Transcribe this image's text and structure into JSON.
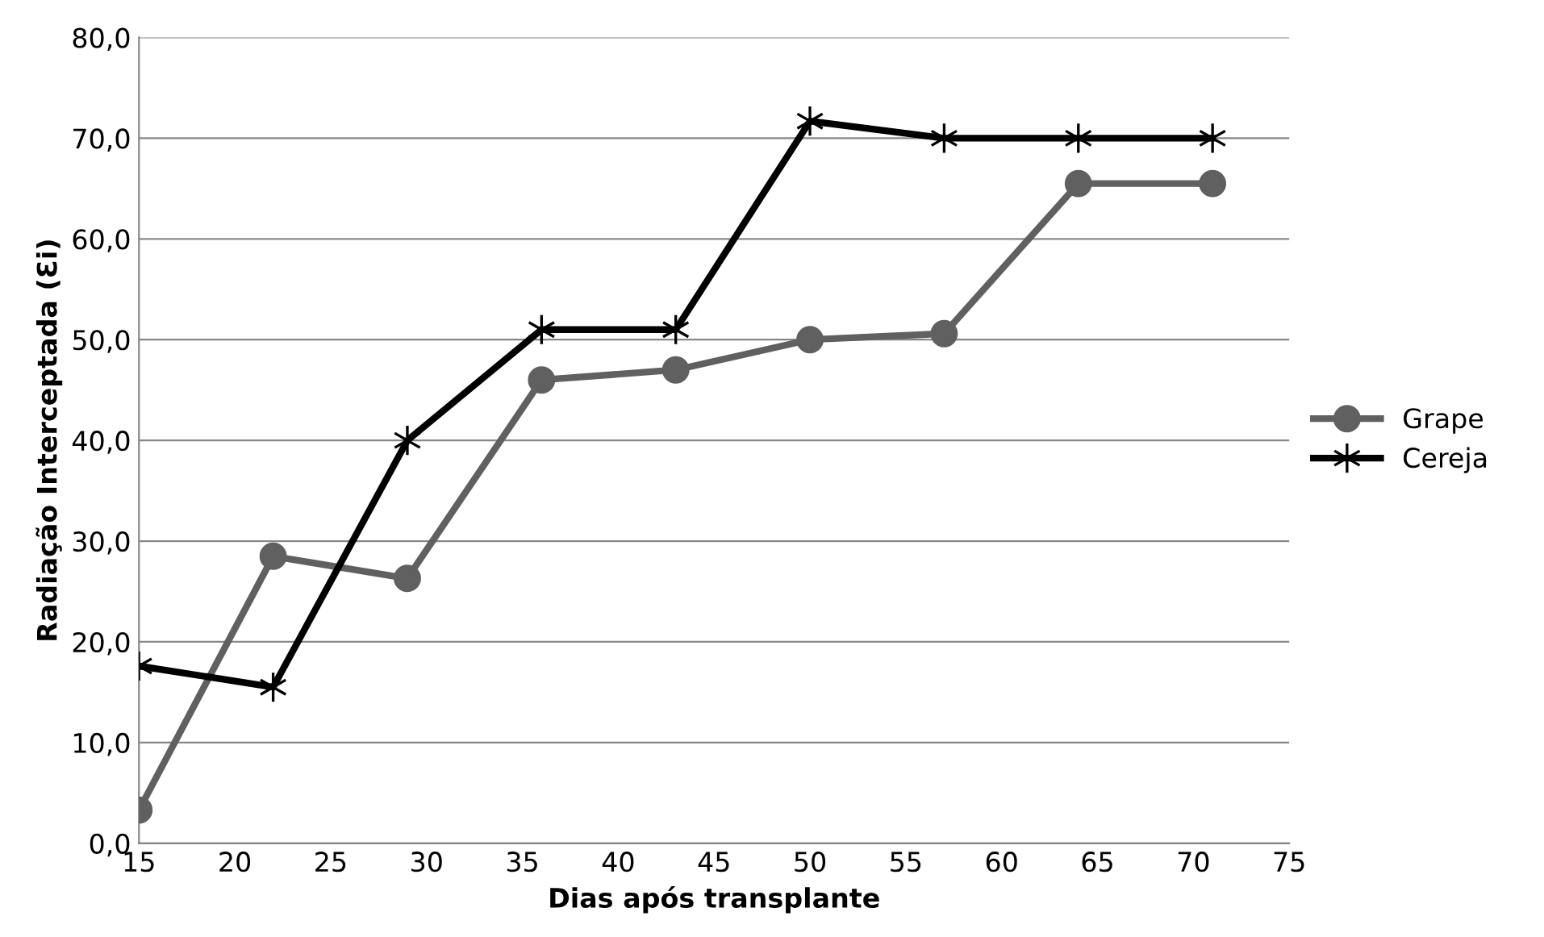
{
  "chart_data": {
    "type": "line",
    "xlabel": "Dias após transplante",
    "ylabel": "Radiação Interceptada (Ɛi)",
    "x": [
      15,
      22,
      29,
      36,
      43,
      50,
      57,
      64,
      71
    ],
    "series": [
      {
        "name": "Grape",
        "color": "#606060",
        "marker": "circle",
        "values": [
          3.3,
          28.5,
          26.3,
          46.0,
          47.0,
          50.0,
          50.6,
          65.5,
          65.5
        ]
      },
      {
        "name": "Cereja",
        "color": "#000000",
        "marker": "cross",
        "values": [
          17.6,
          15.5,
          40.0,
          51.0,
          51.0,
          71.7,
          70.0,
          70.0,
          70.0
        ]
      }
    ],
    "xlim": [
      15,
      75
    ],
    "xticks": [
      15,
      20,
      25,
      30,
      35,
      40,
      45,
      50,
      55,
      60,
      65,
      70,
      75
    ],
    "ylim": [
      0,
      80
    ],
    "yticks": [
      {
        "value": 0,
        "label": "0,0"
      },
      {
        "value": 10,
        "label": "10,0"
      },
      {
        "value": 20,
        "label": "20,0"
      },
      {
        "value": 30,
        "label": "30,0"
      },
      {
        "value": 40,
        "label": "40,0"
      },
      {
        "value": 50,
        "label": "50,0"
      },
      {
        "value": 60,
        "label": "60,0"
      },
      {
        "value": 70,
        "label": "70,0"
      },
      {
        "value": 80,
        "label": "80,0"
      }
    ],
    "grid": "y",
    "legend": "right",
    "line_style": "solid"
  }
}
